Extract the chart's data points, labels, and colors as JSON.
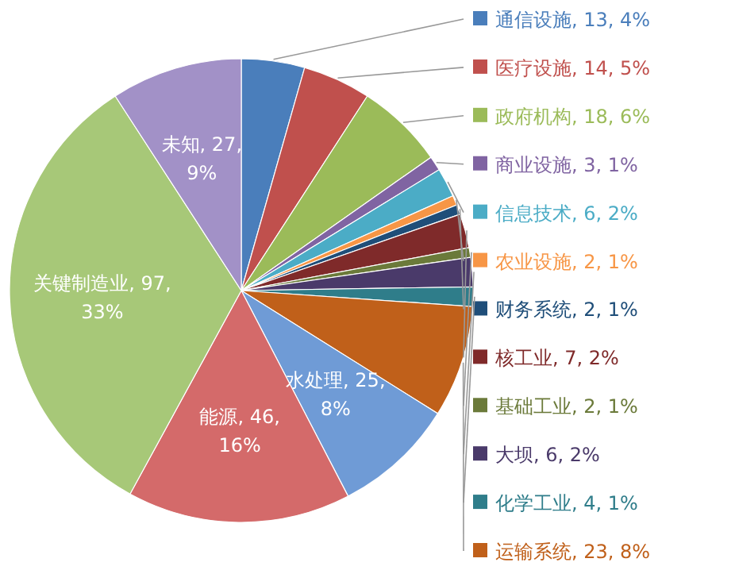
{
  "chart_data": {
    "type": "pie",
    "categories": [
      "通信设施",
      "医疗设施",
      "政府机构",
      "商业设施",
      "信息技术",
      "农业设施",
      "财务系统",
      "核工业",
      "基础工业",
      "大坝",
      "化学工业",
      "运输系统",
      "水处理",
      "能源",
      "关键制造业",
      "未知"
    ],
    "values": [
      13,
      14,
      18,
      3,
      6,
      2,
      2,
      7,
      2,
      6,
      4,
      23,
      25,
      46,
      97,
      27
    ],
    "value_labels": [
      "13, 4%",
      "14, 5%",
      "18, 6%",
      "3, 1%",
      "6, 2%",
      "2, 1%",
      "2, 1%",
      "7, 2%",
      "2, 1%",
      "6, 2%",
      "4, 1%",
      "23, 8%",
      "25, 8%",
      "46, 16%",
      "97, 33%",
      "27, 9%"
    ],
    "colors": [
      "#4a7ebb",
      "#c0504d",
      "#9bbb59",
      "#8064a2",
      "#4bacc6",
      "#f79646",
      "#1f4e79",
      "#7f2a2a",
      "#6b7a3a",
      "#4a3a6a",
      "#2f7d8a",
      "#c0601a",
      "#6f9bd6",
      "#d46a6a",
      "#a7c878",
      "#a291c7"
    ],
    "legend": "right"
  }
}
